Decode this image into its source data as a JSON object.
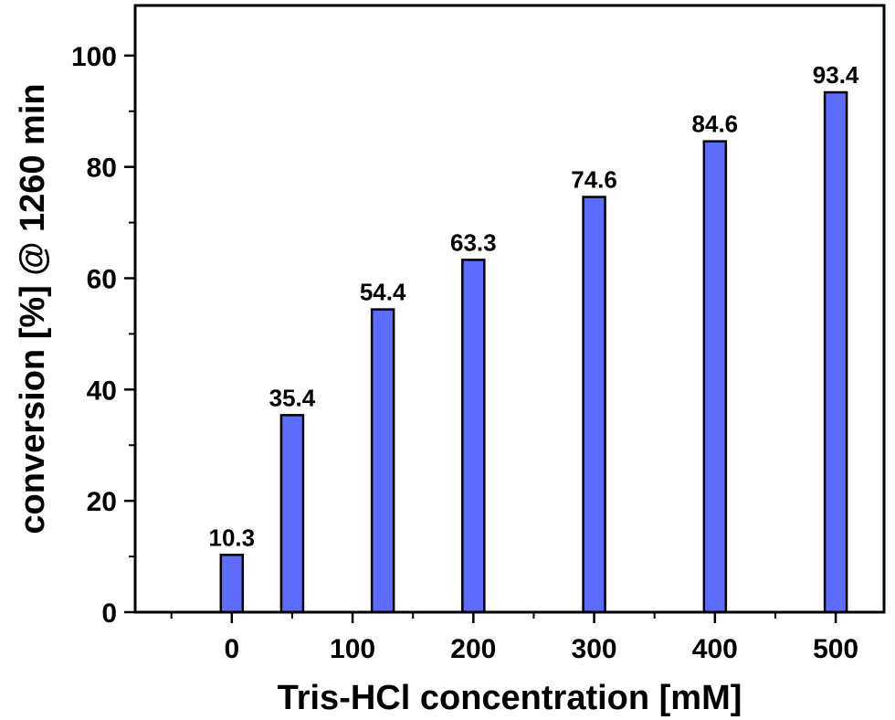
{
  "chart_data": {
    "type": "bar",
    "x": [
      0,
      50,
      125,
      200,
      300,
      400,
      500
    ],
    "values": [
      10.3,
      35.4,
      54.4,
      63.3,
      74.6,
      84.6,
      93.4
    ],
    "data_labels": [
      "10.3",
      "35.4",
      "54.4",
      "63.3",
      "74.6",
      "84.6",
      "93.4"
    ],
    "xlabel": "Tris-HCl concentration [mM]",
    "ylabel": "conversion [%] @ 1260 min",
    "xlim": [
      -80,
      540
    ],
    "ylim": [
      0,
      109
    ],
    "x_ticks": [
      0,
      100,
      200,
      300,
      400,
      500
    ],
    "y_ticks": [
      0,
      20,
      40,
      60,
      80,
      100
    ],
    "bar_color": "#5b6cff",
    "grid": false,
    "legend": "none"
  }
}
